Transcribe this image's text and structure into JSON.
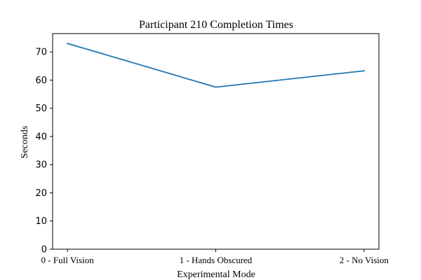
{
  "chart_data": {
    "type": "line",
    "title": "Participant 210 Completion Times",
    "xlabel": "Experimental Mode",
    "ylabel": "Seconds",
    "categories": [
      "0 - Full Vision",
      "1 - Hands Obscured",
      "2 - No Vision"
    ],
    "series": [
      {
        "values": [
          73.0,
          57.5,
          63.3
        ],
        "color": "#1f77b4"
      }
    ],
    "ylim": [
      0,
      76.5
    ],
    "yticks": [
      0,
      10,
      20,
      30,
      40,
      50,
      60,
      70
    ],
    "grid": false,
    "legend": "none"
  }
}
